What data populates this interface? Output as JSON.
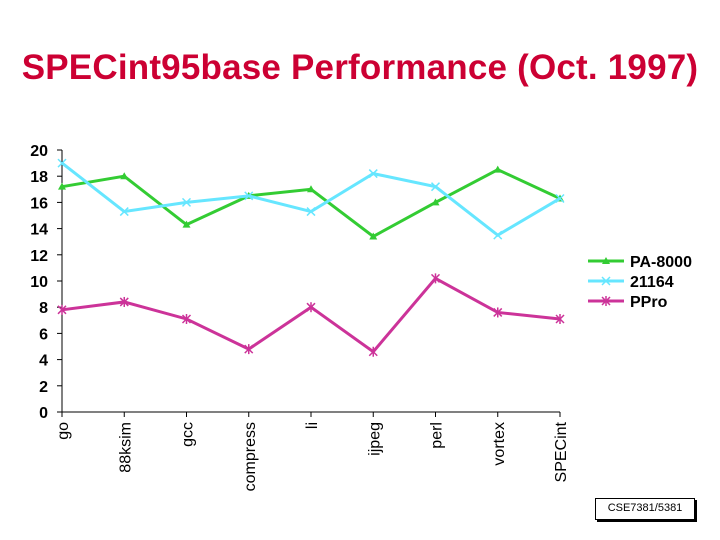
{
  "slide": {
    "title": "SPECint95base Performance (Oct. 1997)",
    "footer": "CSE7381/5381"
  },
  "chart_data": {
    "type": "line",
    "title": "",
    "xlabel": "",
    "ylabel": "",
    "categories": [
      "go",
      "88ksim",
      "gcc",
      "compress",
      "li",
      "ijpeg",
      "perl",
      "vortex",
      "SPECint"
    ],
    "ylim": [
      0,
      20
    ],
    "yticks": [
      0,
      2,
      4,
      6,
      8,
      10,
      12,
      14,
      16,
      18,
      20
    ],
    "grid": false,
    "legend_position": "right",
    "series": [
      {
        "name": "PA-8000",
        "color": "#33cc33",
        "marker": "triangle",
        "values": [
          17.2,
          18.0,
          14.3,
          16.5,
          17.0,
          13.4,
          16.0,
          18.5,
          16.3
        ]
      },
      {
        "name": "21164",
        "color": "#66e6ff",
        "marker": "x",
        "values": [
          19.0,
          15.3,
          16.0,
          16.5,
          15.3,
          18.2,
          17.2,
          13.5,
          16.3
        ]
      },
      {
        "name": "PPro",
        "color": "#cc3399",
        "marker": "star",
        "values": [
          7.8,
          8.4,
          7.1,
          4.8,
          8.0,
          4.6,
          10.2,
          7.6,
          7.1
        ]
      }
    ]
  }
}
